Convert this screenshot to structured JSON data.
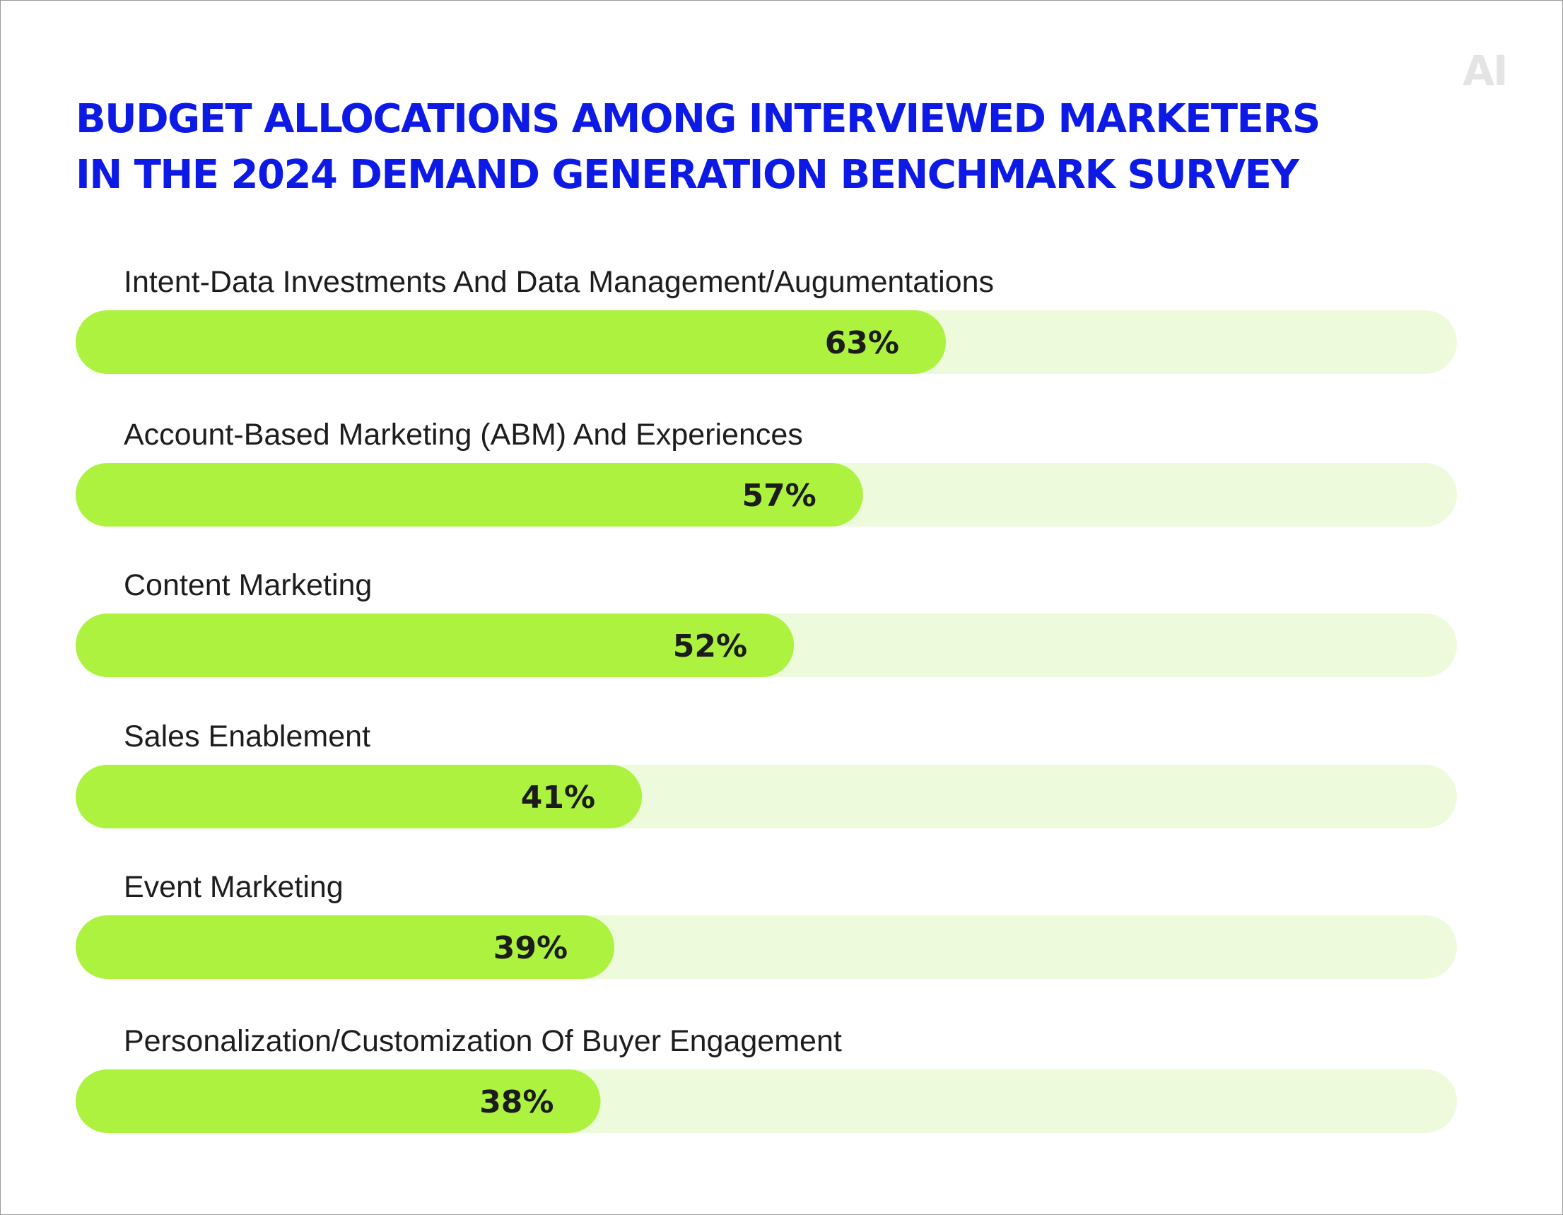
{
  "logo": "AI",
  "title_lines": [
    "BUDGET ALLOCATIONS AMONG INTERVIEWED MARKETERS",
    "IN THE 2024 DEMAND GENERATION BENCHMARK SURVEY"
  ],
  "colors": {
    "title": "#0d1ae6",
    "bar_fill": "#adf23f",
    "bar_track": "#edfbdc",
    "text": "#1d1d1d",
    "logo": "#e4e4e4"
  },
  "chart_data": {
    "type": "bar",
    "orientation": "horizontal",
    "title": "BUDGET ALLOCATIONS AMONG INTERVIEWED MARKETERS IN THE 2024 DEMAND GENERATION BENCHMARK SURVEY",
    "categories": [
      "Intent-Data Investments And Data Management/Augumentations",
      "Account-Based Marketing (ABM) And Experiences",
      "Content Marketing",
      "Sales Enablement",
      "Event Marketing",
      "Personalization/Customization Of Buyer Engagement"
    ],
    "values": [
      63,
      57,
      52,
      41,
      39,
      38
    ],
    "value_labels": [
      "63%",
      "57%",
      "52%",
      "41%",
      "39%",
      "38%"
    ],
    "unit": "%",
    "xlim": [
      0,
      100
    ],
    "xlabel": "",
    "ylabel": "",
    "grid": false,
    "legend": "none"
  }
}
